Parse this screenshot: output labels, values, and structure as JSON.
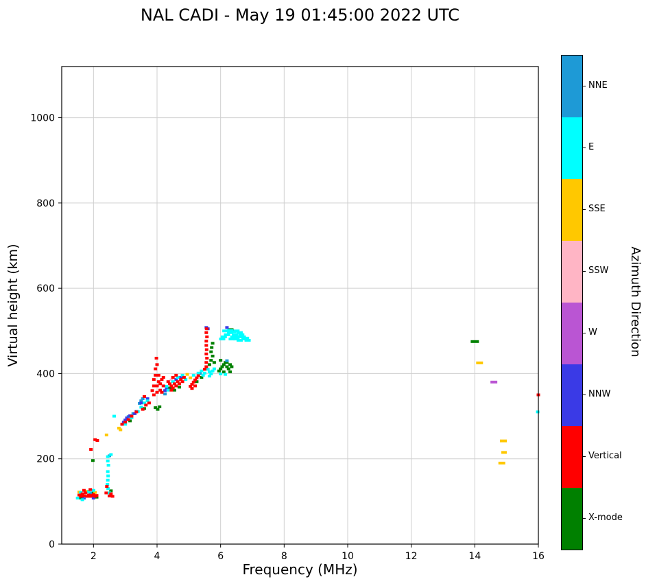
{
  "title": "NAL CADI - May 19 01:45:00 2022 UTC",
  "xlabel": "Frequency (MHz)",
  "ylabel": "Virtual height (km)",
  "colorbar": {
    "label": "Azimuth Direction",
    "entries": [
      {
        "label": "NNE",
        "color": "#1E9AD6"
      },
      {
        "label": "E",
        "color": "#00FFFF"
      },
      {
        "label": "SSE",
        "color": "#FFC800"
      },
      {
        "label": "SSW",
        "color": "#FFB5C5"
      },
      {
        "label": "W",
        "color": "#BA55D3"
      },
      {
        "label": "NNW",
        "color": "#3A3AE6"
      },
      {
        "label": "Vertical",
        "color": "#FF0000"
      },
      {
        "label": "X-mode",
        "color": "#008000"
      }
    ]
  },
  "chart_data": {
    "type": "scatter",
    "title": "NAL CADI - May 19 01:45:00 2022 UTC",
    "xlabel": "Frequency (MHz)",
    "ylabel": "Virtual height (km)",
    "xlim": [
      1,
      16
    ],
    "ylim": [
      0,
      1120
    ],
    "xticks": [
      2,
      4,
      6,
      8,
      10,
      12,
      14,
      16
    ],
    "yticks": [
      0,
      200,
      400,
      600,
      800,
      1000
    ],
    "grid": true,
    "legend_position": "right-colorbar",
    "series": [
      {
        "name": "X-mode",
        "color": "#008000",
        "points": [
          [
            1.6,
            108
          ],
          [
            1.95,
            120
          ],
          [
            2.1,
            110
          ],
          [
            1.98,
            196
          ],
          [
            2.55,
            125
          ],
          [
            3.15,
            289
          ],
          [
            3.6,
            318
          ],
          [
            3.95,
            320
          ],
          [
            4.02,
            316
          ],
          [
            4.08,
            322
          ],
          [
            4.4,
            366
          ],
          [
            4.55,
            361
          ],
          [
            4.7,
            368
          ],
          [
            5.25,
            381
          ],
          [
            5.4,
            391
          ],
          [
            5.65,
            421
          ],
          [
            5.7,
            431
          ],
          [
            5.75,
            441
          ],
          [
            5.7,
            451
          ],
          [
            5.72,
            461
          ],
          [
            5.75,
            471
          ],
          [
            5.8,
            426
          ],
          [
            5.95,
            406
          ],
          [
            6.0,
            411
          ],
          [
            6.05,
            416
          ],
          [
            6.1,
            421
          ],
          [
            6.15,
            426
          ],
          [
            6.2,
            416
          ],
          [
            6.25,
            411
          ],
          [
            6.3,
            421
          ],
          [
            6.1,
            404
          ],
          [
            6.2,
            426
          ],
          [
            6.35,
            416
          ],
          [
            6.0,
            431
          ],
          [
            6.3,
            404
          ],
          [
            6.32,
            503,
            8
          ],
          [
            14.0,
            475,
            12
          ]
        ]
      },
      {
        "name": "NNE",
        "color": "#1E9AD6",
        "points": [
          [
            1.9,
            120
          ],
          [
            2.5,
            207
          ],
          [
            3.1,
            299
          ],
          [
            3.25,
            306
          ],
          [
            3.45,
            330
          ],
          [
            3.5,
            336
          ],
          [
            3.55,
            341
          ],
          [
            4.25,
            352
          ],
          [
            5.35,
            400
          ],
          [
            6.2,
            430
          ]
        ]
      },
      {
        "name": "NNW",
        "color": "#3A3AE6",
        "points": [
          [
            1.7,
            108
          ],
          [
            2.0,
            108
          ],
          [
            2.9,
            281
          ],
          [
            2.95,
            286
          ],
          [
            3.0,
            291
          ],
          [
            3.05,
            296
          ],
          [
            3.15,
            301
          ],
          [
            3.3,
            306
          ],
          [
            3.35,
            311
          ],
          [
            3.5,
            331
          ],
          [
            3.7,
            341
          ],
          [
            4.25,
            360
          ],
          [
            4.3,
            366
          ],
          [
            4.6,
            386
          ],
          [
            4.75,
            391
          ],
          [
            5.55,
            508
          ],
          [
            5.6,
            505
          ],
          [
            6.2,
            508
          ]
        ]
      },
      {
        "name": "SSW",
        "color": "#FFB5C5",
        "points": [
          [
            4.45,
            385
          ]
        ]
      },
      {
        "name": "W",
        "color": "#BA55D3",
        "points": [
          [
            14.6,
            380,
            10
          ]
        ]
      },
      {
        "name": "SSE",
        "color": "#FFC800",
        "points": [
          [
            1.55,
            122
          ],
          [
            1.8,
            124
          ],
          [
            2.05,
            121
          ],
          [
            2.41,
            256
          ],
          [
            2.8,
            272
          ],
          [
            2.85,
            268
          ],
          [
            4.95,
            398
          ],
          [
            5.05,
            390
          ],
          [
            14.15,
            425,
            10
          ],
          [
            14.9,
            242,
            10
          ],
          [
            14.92,
            215,
            8
          ],
          [
            14.85,
            190,
            10
          ]
        ]
      },
      {
        "name": "E",
        "color": "#00FFFF",
        "points": [
          [
            1.5,
            108
          ],
          [
            1.6,
            121
          ],
          [
            1.65,
            104
          ],
          [
            1.75,
            112
          ],
          [
            1.85,
            123
          ],
          [
            2.0,
            126
          ],
          [
            2.45,
            205
          ],
          [
            2.45,
            195
          ],
          [
            2.47,
            185
          ],
          [
            2.45,
            170
          ],
          [
            2.46,
            160
          ],
          [
            2.45,
            150
          ],
          [
            2.44,
            140
          ],
          [
            2.46,
            130
          ],
          [
            2.5,
            120
          ],
          [
            2.55,
            210
          ],
          [
            2.65,
            300
          ],
          [
            3.0,
            281
          ],
          [
            3.2,
            296
          ],
          [
            3.4,
            311
          ],
          [
            3.5,
            321
          ],
          [
            3.6,
            331
          ],
          [
            3.7,
            336
          ],
          [
            4.3,
            370
          ],
          [
            4.35,
            361
          ],
          [
            4.5,
            381
          ],
          [
            4.65,
            391
          ],
          [
            4.8,
            396
          ],
          [
            4.9,
            386
          ],
          [
            5.15,
            396
          ],
          [
            5.3,
            401
          ],
          [
            5.4,
            406
          ],
          [
            5.45,
            396
          ],
          [
            5.5,
            401
          ],
          [
            5.6,
            410
          ],
          [
            5.65,
            404
          ],
          [
            5.7,
            399
          ],
          [
            5.75,
            406
          ],
          [
            5.8,
            411
          ],
          [
            5.65,
            394
          ],
          [
            6.0,
            399
          ],
          [
            6.15,
            398
          ],
          [
            6.05,
            481,
            9
          ],
          [
            6.1,
            486,
            9
          ],
          [
            6.2,
            491,
            9
          ],
          [
            6.3,
            496,
            9
          ],
          [
            6.35,
            481,
            9
          ],
          [
            6.4,
            486,
            9
          ],
          [
            6.45,
            491,
            9
          ],
          [
            6.5,
            481,
            9
          ],
          [
            6.55,
            486,
            9
          ],
          [
            6.6,
            478,
            9
          ],
          [
            6.65,
            491,
            9
          ],
          [
            6.7,
            486,
            9
          ],
          [
            6.75,
            481,
            9
          ],
          [
            6.5,
            500,
            9
          ],
          [
            6.3,
            501,
            9
          ],
          [
            6.15,
            500,
            9
          ],
          [
            6.4,
            498,
            9
          ],
          [
            6.6,
            496,
            9
          ],
          [
            6.8,
            483,
            9
          ],
          [
            6.85,
            478,
            9
          ],
          [
            15.98,
            310
          ]
        ]
      },
      {
        "name": "Vertical",
        "color": "#FF0000",
        "points": [
          [
            1.55,
            115
          ],
          [
            1.6,
            112
          ],
          [
            1.65,
            118
          ],
          [
            1.7,
            113
          ],
          [
            1.75,
            120
          ],
          [
            1.8,
            112
          ],
          [
            1.85,
            115
          ],
          [
            1.9,
            112
          ],
          [
            1.95,
            114
          ],
          [
            2.0,
            116
          ],
          [
            2.05,
            112
          ],
          [
            2.1,
            114
          ],
          [
            1.7,
            126
          ],
          [
            1.9,
            128
          ],
          [
            2.4,
            120
          ],
          [
            2.5,
            113
          ],
          [
            2.55,
            118
          ],
          [
            2.6,
            112
          ],
          [
            2.42,
            135
          ],
          [
            1.92,
            222
          ],
          [
            2.05,
            245
          ],
          [
            2.12,
            243
          ],
          [
            2.9,
            281
          ],
          [
            3.0,
            286
          ],
          [
            3.1,
            292
          ],
          [
            3.2,
            300
          ],
          [
            3.35,
            310
          ],
          [
            3.55,
            316
          ],
          [
            3.65,
            326
          ],
          [
            3.75,
            331
          ],
          [
            3.6,
            346
          ],
          [
            3.85,
            360
          ],
          [
            3.9,
            350
          ],
          [
            3.9,
            371
          ],
          [
            3.9,
            386
          ],
          [
            3.95,
            396
          ],
          [
            3.95,
            411
          ],
          [
            4.0,
            421
          ],
          [
            3.98,
            436
          ],
          [
            4.0,
            356
          ],
          [
            4.0,
            371
          ],
          [
            4.05,
            381
          ],
          [
            4.05,
            396
          ],
          [
            4.1,
            361
          ],
          [
            4.1,
            376
          ],
          [
            4.15,
            386
          ],
          [
            4.15,
            356
          ],
          [
            4.2,
            371
          ],
          [
            4.2,
            391
          ],
          [
            4.35,
            381
          ],
          [
            4.4,
            376
          ],
          [
            4.45,
            371
          ],
          [
            4.5,
            366
          ],
          [
            4.55,
            376
          ],
          [
            4.6,
            371
          ],
          [
            4.65,
            381
          ],
          [
            4.7,
            376
          ],
          [
            4.75,
            386
          ],
          [
            4.8,
            381
          ],
          [
            4.85,
            391
          ],
          [
            4.5,
            391
          ],
          [
            4.6,
            396
          ],
          [
            4.45,
            361
          ],
          [
            5.05,
            370
          ],
          [
            5.1,
            375
          ],
          [
            5.15,
            380
          ],
          [
            5.2,
            385
          ],
          [
            5.25,
            390
          ],
          [
            5.3,
            395
          ],
          [
            5.1,
            365
          ],
          [
            5.2,
            371
          ],
          [
            5.5,
            410
          ],
          [
            5.55,
            416
          ],
          [
            5.55,
            426
          ],
          [
            5.57,
            436
          ],
          [
            5.55,
            446
          ],
          [
            5.56,
            456
          ],
          [
            5.55,
            466
          ],
          [
            5.55,
            476
          ],
          [
            5.57,
            486
          ],
          [
            5.55,
            496
          ],
          [
            5.56,
            505
          ],
          [
            16.0,
            350
          ]
        ]
      }
    ]
  }
}
